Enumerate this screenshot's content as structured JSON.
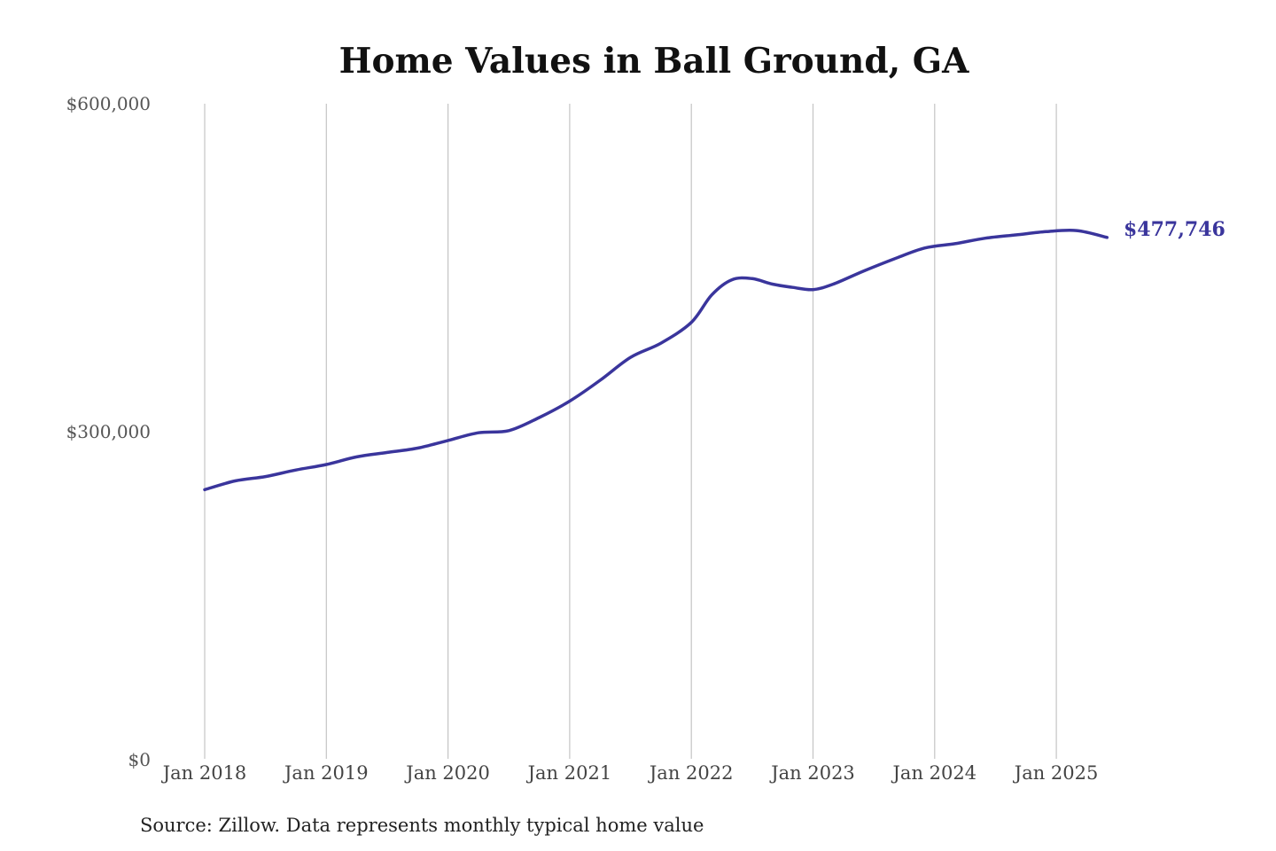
{
  "colors": {
    "line": "#3a359c",
    "grid": "#c4c4c4",
    "background": "#ffffff"
  },
  "chart_data": {
    "type": "line",
    "title": "Home Values in Ball Ground, GA",
    "source": "Source: Zillow. Data represents monthly typical home value",
    "xlabel": "",
    "ylabel": "",
    "ylim": [
      0,
      600000
    ],
    "y_ticks": [
      {
        "value": 0,
        "label": "$0"
      },
      {
        "value": 300000,
        "label": "$300,000"
      },
      {
        "value": 600000,
        "label": "$600,000"
      }
    ],
    "x_ticks": [
      "Jan 2018",
      "Jan 2019",
      "Jan 2020",
      "Jan 2021",
      "Jan 2022",
      "Jan 2023",
      "Jan 2024",
      "Jan 2025"
    ],
    "grid": {
      "vertical": true,
      "horizontal": false
    },
    "end_label": "$477,746",
    "series": [
      {
        "color": "#3a359c",
        "points": [
          [
            "2018-01",
            247000
          ],
          [
            "2018-04",
            255000
          ],
          [
            "2018-07",
            259000
          ],
          [
            "2018-10",
            265000
          ],
          [
            "2019-01",
            270000
          ],
          [
            "2019-04",
            277000
          ],
          [
            "2019-07",
            281000
          ],
          [
            "2019-10",
            285000
          ],
          [
            "2020-01",
            292000
          ],
          [
            "2020-04",
            299000
          ],
          [
            "2020-07",
            301000
          ],
          [
            "2020-10",
            313000
          ],
          [
            "2021-01",
            328000
          ],
          [
            "2021-04",
            347000
          ],
          [
            "2021-07",
            368000
          ],
          [
            "2021-10",
            381000
          ],
          [
            "2022-01",
            400000
          ],
          [
            "2022-03",
            425000
          ],
          [
            "2022-05",
            439000
          ],
          [
            "2022-07",
            440000
          ],
          [
            "2022-09",
            435000
          ],
          [
            "2022-11",
            432000
          ],
          [
            "2023-01",
            430000
          ],
          [
            "2023-03",
            435000
          ],
          [
            "2023-06",
            447000
          ],
          [
            "2023-09",
            458000
          ],
          [
            "2023-12",
            468000
          ],
          [
            "2024-03",
            472000
          ],
          [
            "2024-06",
            477000
          ],
          [
            "2024-09",
            480000
          ],
          [
            "2024-12",
            483000
          ],
          [
            "2025-03",
            484000
          ],
          [
            "2025-06",
            477746
          ]
        ]
      }
    ]
  }
}
